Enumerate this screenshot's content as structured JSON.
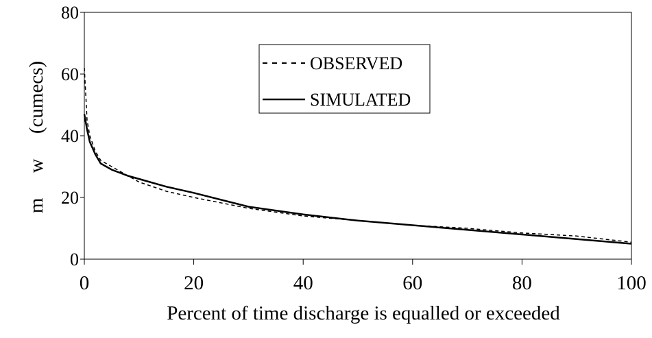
{
  "chart_data": {
    "type": "line",
    "x_label": "Percent of time discharge is equalled or exceeded",
    "y_label": "m     w     (cumecs)",
    "xlim": [
      0,
      100
    ],
    "xticks": [
      0,
      20,
      40,
      60,
      80,
      100
    ],
    "ylim": [
      0,
      80
    ],
    "yticks": [
      0,
      20,
      40,
      60,
      80
    ],
    "legend": "upper right",
    "series": [
      {
        "name": "OBSERVED",
        "color": "#000000",
        "dash": true,
        "x": [
          0,
          0.3,
          0.5,
          1,
          2,
          3,
          5,
          8,
          10,
          15,
          20,
          30,
          40,
          50,
          60,
          70,
          80,
          90,
          100
        ],
        "values": [
          62,
          52,
          45,
          40,
          35,
          32,
          30,
          27,
          25,
          22,
          20,
          16.5,
          14,
          12.5,
          11,
          10,
          8.5,
          7.5,
          5.5
        ]
      },
      {
        "name": "SIMULATED",
        "color": "#000000",
        "dash": false,
        "x": [
          0,
          0.5,
          1,
          2,
          3,
          5,
          8,
          10,
          15,
          20,
          30,
          40,
          50,
          60,
          70,
          80,
          90,
          100
        ],
        "values": [
          47,
          42,
          38,
          34,
          31,
          29,
          27,
          26,
          23.5,
          21.5,
          17,
          14.5,
          12.5,
          11,
          9.5,
          8,
          6.5,
          5
        ]
      }
    ]
  }
}
